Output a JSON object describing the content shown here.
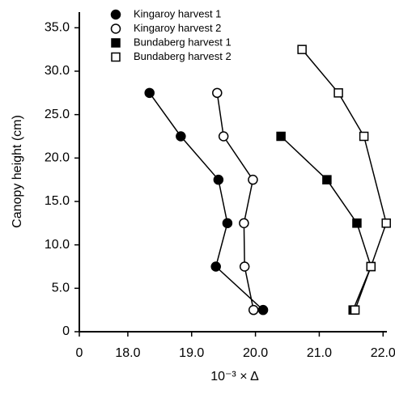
{
  "chart_data": {
    "type": "line",
    "xlabel": "10⁻³ × Δ",
    "ylabel": "Canopy height (cm)",
    "xlim": [
      17.24,
      22.06
    ],
    "xticks": [
      0,
      {
        "value": 18,
        "label": "18.0"
      },
      {
        "value": 19,
        "label": "19.0"
      },
      {
        "value": 20,
        "label": "20.0"
      },
      {
        "value": 21,
        "label": "21.0"
      },
      {
        "value": 22,
        "label": "22.0"
      }
    ],
    "ylim": [
      0,
      36.8
    ],
    "yticks": [
      0,
      {
        "value": 5,
        "label": "5.0"
      },
      {
        "value": 10,
        "label": "10.0"
      },
      {
        "value": 15,
        "label": "15.0"
      },
      {
        "value": 20,
        "label": "20.0"
      },
      {
        "value": 25,
        "label": "25.0"
      },
      {
        "value": 30,
        "label": "30.0"
      },
      {
        "value": 35,
        "label": "35.0"
      }
    ],
    "legend": "upper left",
    "series": [
      {
        "name": "Kingaroy harvest 1",
        "color": "#000000",
        "marker": "filled-circle",
        "x": [
          18.34,
          18.83,
          19.42,
          19.56,
          19.38,
          20.12
        ],
        "y": [
          27.5,
          22.5,
          17.5,
          12.5,
          7.5,
          2.5
        ]
      },
      {
        "name": "Kingaroy harvest 2",
        "color": "#000000",
        "marker": "open-circle",
        "x": [
          19.4,
          19.5,
          19.96,
          19.82,
          19.83,
          19.97
        ],
        "y": [
          27.5,
          22.5,
          17.5,
          12.5,
          7.5,
          2.5
        ]
      },
      {
        "name": "Bundaberg harvest 1",
        "color": "#000000",
        "marker": "filled-square",
        "x": [
          20.4,
          21.12,
          21.59,
          21.81,
          21.53
        ],
        "y": [
          22.5,
          17.5,
          12.5,
          7.5,
          2.5
        ]
      },
      {
        "name": "Bundaberg harvest 2",
        "color": "#000000",
        "marker": "open-square",
        "x": [
          20.73,
          21.3,
          21.7,
          22.05,
          21.81,
          21.56
        ],
        "y": [
          32.5,
          27.5,
          22.5,
          12.5,
          7.5,
          2.5
        ]
      }
    ]
  }
}
